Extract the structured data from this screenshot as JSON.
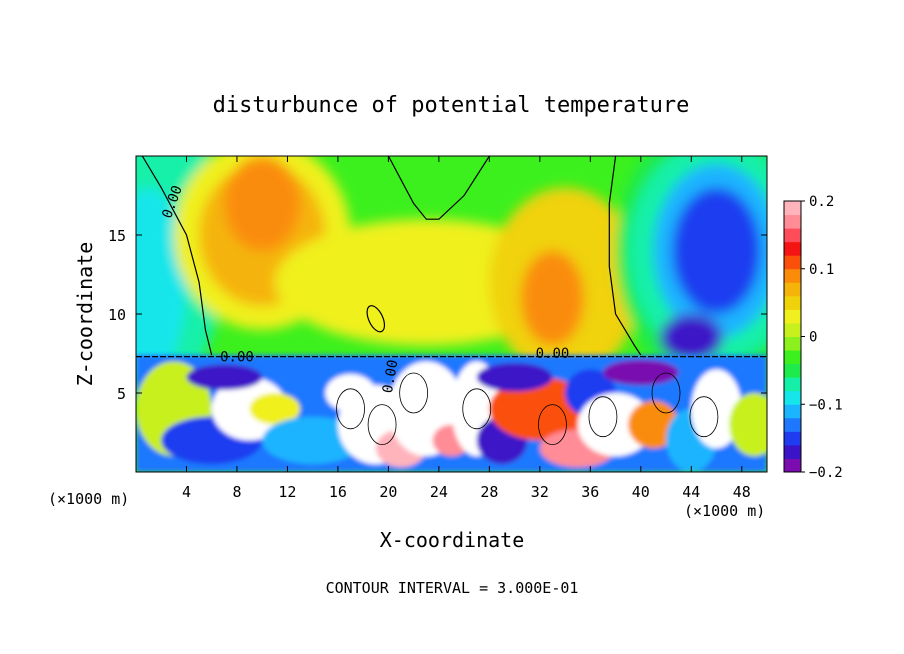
{
  "chart_data": {
    "type": "heatmap",
    "title": "disturbunce of potential temperature",
    "xlabel": "X-coordinate",
    "ylabel": "Z-coordinate",
    "x_unit": "(×1000 m)",
    "x_unit_right": "(×1000 m)",
    "xlim": [
      0,
      50
    ],
    "ylim": [
      0,
      20
    ],
    "x_ticks": [
      4,
      8,
      12,
      16,
      20,
      24,
      28,
      32,
      36,
      40,
      44,
      48
    ],
    "y_ticks": [
      5,
      10,
      15
    ],
    "colorbar": {
      "vmin": -0.2,
      "vmax": 0.2,
      "ticks": [
        0.2,
        0.1,
        0,
        -0.1,
        -0.2
      ],
      "tick_labels": [
        "0.2",
        "0.1",
        "0",
        "−0.1",
        "−0.2"
      ],
      "colors": [
        "#7a0cb0",
        "#3c14c8",
        "#1f3cf0",
        "#1e78ff",
        "#1ab4ff",
        "#14e6ea",
        "#14f0a8",
        "#1eea4c",
        "#3cf01e",
        "#8cf01e",
        "#c8f01e",
        "#f0f01e",
        "#f0d20a",
        "#f5b40a",
        "#fa8c0a",
        "#fa500a",
        "#f51414",
        "#ff4c5a",
        "#ff8c96",
        "#ffb4bc"
      ]
    },
    "contour_labels": [
      "0.00",
      "0.00",
      "0.00",
      "0.00"
    ],
    "footer": "CONTOUR INTERVAL = 3.000E-01"
  }
}
